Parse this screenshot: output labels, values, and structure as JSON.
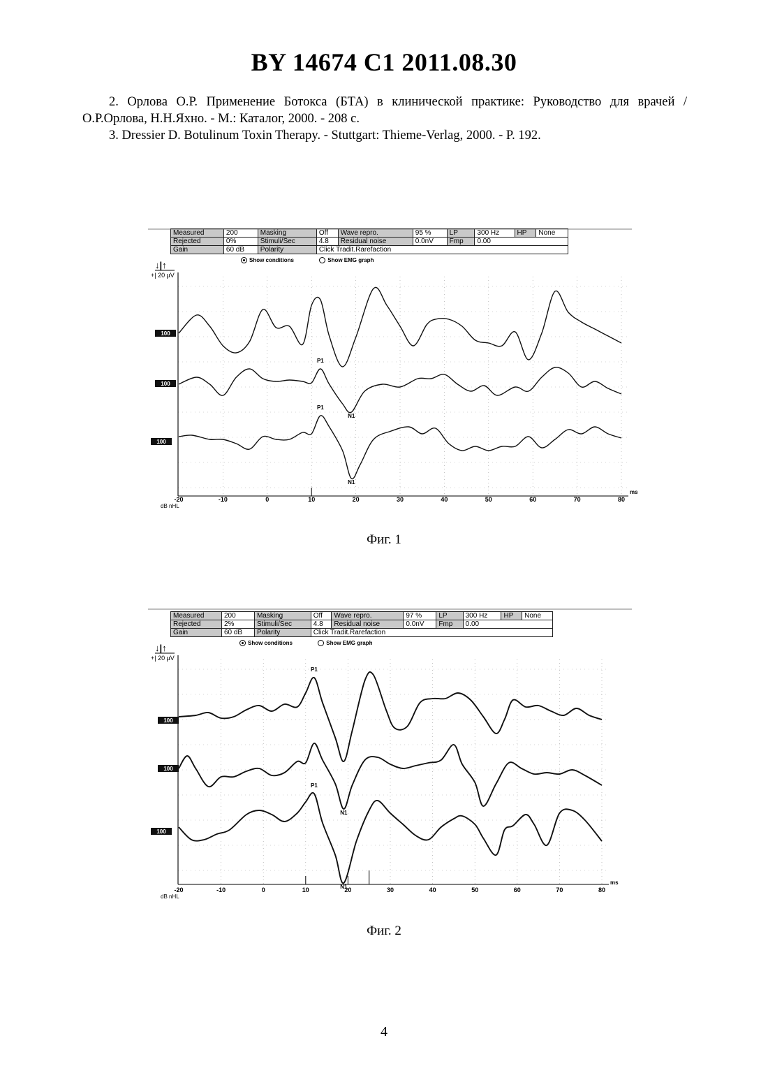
{
  "document": {
    "header": "BY  14674  C1  2011.08.30",
    "references": [
      "2. Орлова О.Р. Применение Ботокса (БТА) в клинической практике: Руководство для врачей / О.Р.Орлова, Н.Н.Яхно. - М.: Каталог, 2000. - 208 с.",
      "3. Dressier D. Botulinum Toxin Therapy. - Stuttgart: Thieme-Verlag, 2000. - P. 192."
    ],
    "page_number": "4"
  },
  "figures": [
    {
      "caption": "Фиг. 1",
      "params": {
        "measured_label": "Measured",
        "measured": "200",
        "masking_label": "Masking",
        "masking": "Off",
        "wave_repro_label": "Wave repro.",
        "wave_repro": "95 %",
        "lp_label": "LP",
        "lp": "300 Hz",
        "hp_label": "HP",
        "hp": "None",
        "rejected_label": "Rejected",
        "rejected": "0%",
        "stimuli_label": "Stimuli/Sec",
        "stimuli": "4.8",
        "residual_label": "Residual noise",
        "residual": "0.0nV",
        "fmp_label": "Fmp",
        "fmp": "0.00",
        "gain_label": "Gain",
        "gain": "60 dB",
        "polarity_label": "Polarity",
        "polarity": "Click Tradit.Rarefaction"
      },
      "options": {
        "show_conditions": "Show conditions",
        "show_emg": "Show EMG graph"
      },
      "scale_label": "+| 20 µV",
      "arrows": "↓|↑",
      "x_unit": "ms",
      "level_unit": "dB nHL",
      "x_ticks": [
        "-20",
        "-10",
        "0",
        "10",
        "20",
        "30",
        "40",
        "50",
        "60",
        "70",
        "80"
      ],
      "trace_labels": [
        "100",
        "100",
        "100"
      ],
      "peak_labels": [
        {
          "text": "P1",
          "trace": 1,
          "x": 12
        },
        {
          "text": "N1",
          "trace": 1,
          "x": 19
        },
        {
          "text": "P1",
          "trace": 2,
          "x": 12
        },
        {
          "text": "N1",
          "trace": 2,
          "x": 19
        }
      ]
    },
    {
      "caption": "Фиг. 2",
      "params": {
        "measured_label": "Measured",
        "measured": "200",
        "masking_label": "Masking",
        "masking": "Off",
        "wave_repro_label": "Wave repro.",
        "wave_repro": "97 %",
        "lp_label": "LP",
        "lp": "300 Hz",
        "hp_label": "HP",
        "hp": "None",
        "rejected_label": "Rejected",
        "rejected": "2%",
        "stimuli_label": "Stimuli/Sec",
        "stimuli": "4.8",
        "residual_label": "Residual noise",
        "residual": "0.0nV",
        "fmp_label": "Fmp",
        "fmp": "0.00",
        "gain_label": "Gain",
        "gain": "60 dB",
        "polarity_label": "Polarity",
        "polarity": "Click Tradit.Rarefaction"
      },
      "options": {
        "show_conditions": "Show conditions",
        "show_emg": "Show EMG graph"
      },
      "scale_label": "+| 20 µV",
      "arrows": "↓|↑",
      "x_unit": "ms",
      "level_unit": "dB nHL",
      "x_ticks": [
        "-20",
        "-10",
        "0",
        "10",
        "20",
        "30",
        "40",
        "50",
        "60",
        "70",
        "80"
      ],
      "trace_labels": [
        "100",
        "100",
        "100"
      ],
      "peak_labels": [
        {
          "text": "P1",
          "trace": 0,
          "x": 12
        },
        {
          "text": "N1",
          "trace": 1,
          "x": 19
        },
        {
          "text": "P1",
          "trace": 2,
          "x": 12
        },
        {
          "text": "N1",
          "trace": 2,
          "x": 19
        }
      ]
    }
  ]
}
